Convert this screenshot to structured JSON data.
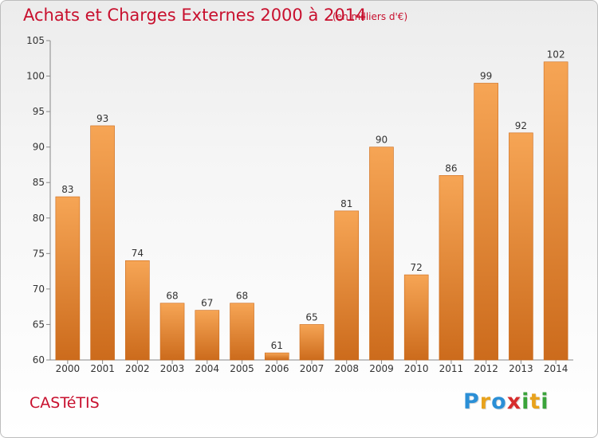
{
  "header": {
    "title": "Achats et Charges Externes 2000 à 2014",
    "subtitle": "(en milliers d'€)"
  },
  "footer": {
    "commune": "CASTéTIS",
    "brand_letters": [
      {
        "ch": "P",
        "color": "#2b8fd6"
      },
      {
        "ch": "r",
        "color": "#e8a21c"
      },
      {
        "ch": "o",
        "color": "#2b8fd6"
      },
      {
        "ch": "x",
        "color": "#d62c2c"
      },
      {
        "ch": "i",
        "color": "#3aa33a"
      },
      {
        "ch": "t",
        "color": "#e8a21c"
      },
      {
        "ch": "i",
        "color": "#3aa33a"
      }
    ]
  },
  "chart_data": {
    "type": "bar",
    "title": "Achats et Charges Externes 2000 à 2014",
    "subtitle": "(en milliers d'€)",
    "xlabel": "",
    "ylabel": "",
    "categories": [
      "2000",
      "2001",
      "2002",
      "2003",
      "2004",
      "2005",
      "2006",
      "2007",
      "2008",
      "2009",
      "2010",
      "2011",
      "2012",
      "2013",
      "2014"
    ],
    "values": [
      83,
      93,
      74,
      68,
      67,
      68,
      61,
      65,
      81,
      90,
      72,
      86,
      99,
      92,
      102
    ],
    "ylim": [
      60,
      105
    ],
    "yticks": [
      60,
      65,
      70,
      75,
      80,
      85,
      90,
      95,
      100,
      105
    ],
    "grid": false,
    "bar_color": "#e8862a",
    "bar_color_light": "#f6a555",
    "bar_color_dark": "#cc6b1c"
  }
}
